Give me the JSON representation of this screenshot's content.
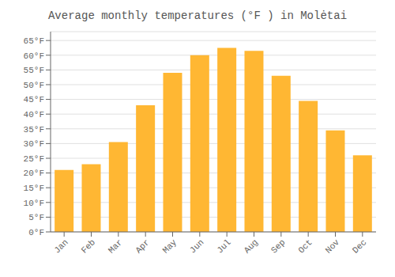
{
  "chart_data": {
    "type": "bar",
    "title": "Average monthly temperatures (°F ) in Molėtai",
    "categories": [
      "Jan",
      "Feb",
      "Mar",
      "Apr",
      "May",
      "Jun",
      "Jul",
      "Aug",
      "Sep",
      "Oct",
      "Nov",
      "Dec"
    ],
    "values": [
      21,
      23,
      30.5,
      43,
      54,
      60,
      62.5,
      61.5,
      53,
      44.5,
      34.5,
      26
    ],
    "color": "#FFB733",
    "ylim": [
      0,
      68
    ],
    "yticks": [
      {
        "value": 0,
        "label": "0°F"
      },
      {
        "value": 5,
        "label": "5°F"
      },
      {
        "value": 10,
        "label": "10°F"
      },
      {
        "value": 15,
        "label": "15°F"
      },
      {
        "value": 20,
        "label": "20°F"
      },
      {
        "value": 25,
        "label": "25°F"
      },
      {
        "value": 30,
        "label": "30°F"
      },
      {
        "value": 35,
        "label": "35°F"
      },
      {
        "value": 40,
        "label": "40°F"
      },
      {
        "value": 45,
        "label": "45°F"
      },
      {
        "value": 50,
        "label": "50°F"
      },
      {
        "value": 55,
        "label": "55°F"
      },
      {
        "value": 60,
        "label": "60°F"
      },
      {
        "value": 65,
        "label": "65°F"
      }
    ],
    "grid": true
  }
}
